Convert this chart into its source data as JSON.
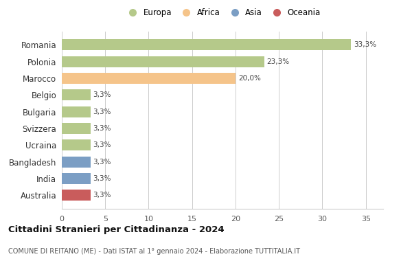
{
  "categories": [
    "Romania",
    "Polonia",
    "Marocco",
    "Belgio",
    "Bulgaria",
    "Svizzera",
    "Ucraina",
    "Bangladesh",
    "India",
    "Australia"
  ],
  "values": [
    33.3,
    23.3,
    20.0,
    3.3,
    3.3,
    3.3,
    3.3,
    3.3,
    3.3,
    3.3
  ],
  "labels": [
    "33,3%",
    "23,3%",
    "20,0%",
    "3,3%",
    "3,3%",
    "3,3%",
    "3,3%",
    "3,3%",
    "3,3%",
    "3,3%"
  ],
  "colors": [
    "#b5c98a",
    "#b5c98a",
    "#f5c48a",
    "#b5c98a",
    "#b5c98a",
    "#b5c98a",
    "#b5c98a",
    "#7b9ec4",
    "#7b9ec4",
    "#c95c5c"
  ],
  "legend_labels": [
    "Europa",
    "Africa",
    "Asia",
    "Oceania"
  ],
  "legend_colors": [
    "#b5c98a",
    "#f5c48a",
    "#7b9ec4",
    "#c95c5c"
  ],
  "title": "Cittadini Stranieri per Cittadinanza - 2024",
  "subtitle": "COMUNE DI REITANO (ME) - Dati ISTAT al 1° gennaio 2024 - Elaborazione TUTTITALIA.IT",
  "xlim": [
    0,
    37
  ],
  "xticks": [
    0,
    5,
    10,
    15,
    20,
    25,
    30,
    35
  ],
  "background_color": "#ffffff",
  "grid_color": "#cccccc",
  "bar_height": 0.65
}
